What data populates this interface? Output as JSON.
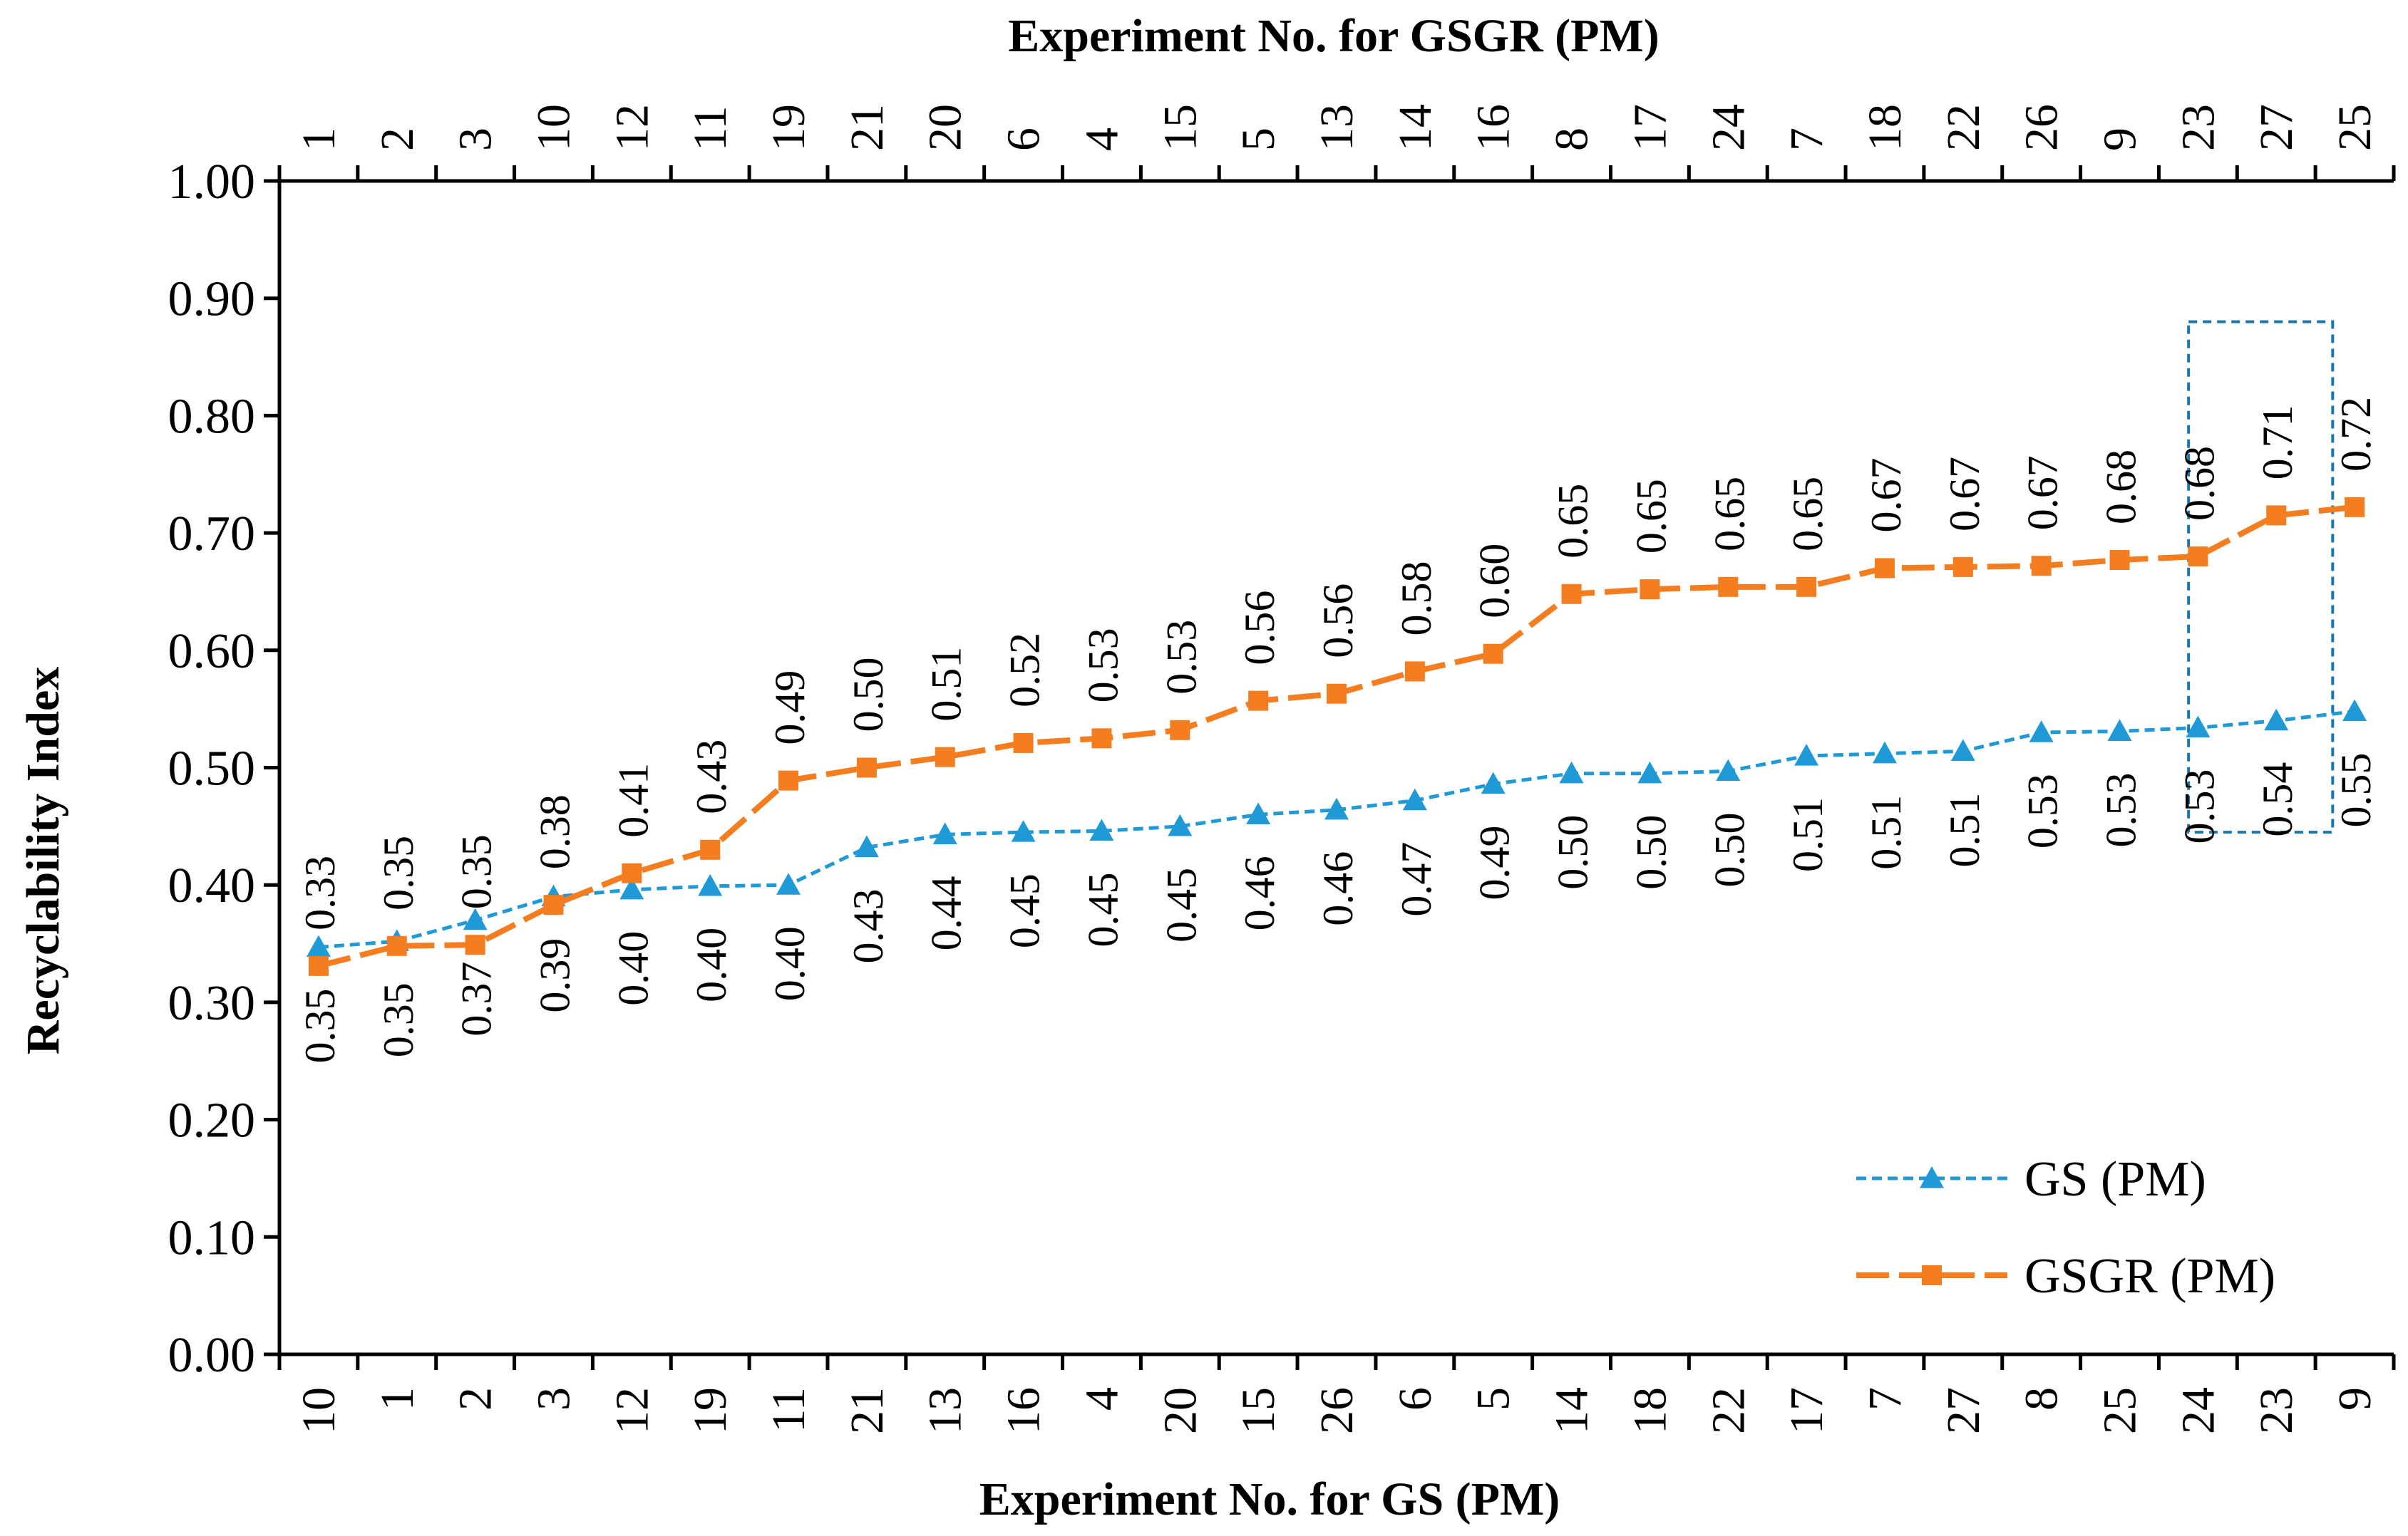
{
  "chart_data": {
    "type": "line",
    "title_top": "Experiment No. for GSGR  (PM)",
    "xlabel": "Experiment No. for GS (PM)",
    "ylabel": "Recyclability Index",
    "ylim": [
      0,
      1
    ],
    "y_ticks": [
      "0.00",
      "0.10",
      "0.20",
      "0.30",
      "0.40",
      "0.50",
      "0.60",
      "0.70",
      "0.80",
      "0.90",
      "1.00"
    ],
    "x_ticks_bottom": [
      "10",
      "1",
      "2",
      "3",
      "12",
      "19",
      "11",
      "21",
      "13",
      "16",
      "4",
      "20",
      "15",
      "26",
      "6",
      "5",
      "14",
      "18",
      "22",
      "17",
      "7",
      "27",
      "8",
      "25",
      "24",
      "23",
      "9"
    ],
    "x_ticks_top": [
      "1",
      "2",
      "3",
      "10",
      "12",
      "11",
      "19",
      "21",
      "20",
      "6",
      "4",
      "15",
      "5",
      "13",
      "14",
      "16",
      "8",
      "17",
      "24",
      "7",
      "18",
      "22",
      "26",
      "9",
      "23",
      "27",
      "25"
    ],
    "legend_position": "bottom-right",
    "series": [
      {
        "name": "GS (PM)",
        "color": "#1f9ad6",
        "marker": "triangle",
        "values": [
          0.347,
          0.352,
          0.37,
          0.39,
          0.396,
          0.399,
          0.4,
          0.432,
          0.443,
          0.445,
          0.446,
          0.45,
          0.46,
          0.464,
          0.472,
          0.486,
          0.495,
          0.495,
          0.497,
          0.51,
          0.512,
          0.514,
          0.53,
          0.531,
          0.534,
          0.54,
          0.548
        ],
        "labels": [
          "0.35",
          "0.35",
          "0.37",
          "0.39",
          "0.40",
          "0.40",
          "0.40",
          "0.43",
          "0.44",
          "0.45",
          "0.45",
          "0.45",
          "0.46",
          "0.46",
          "0.47",
          "0.49",
          "0.50",
          "0.50",
          "0.50",
          "0.51",
          "0.51",
          "0.51",
          "0.53",
          "0.53",
          "0.53",
          "0.54",
          "0.55"
        ]
      },
      {
        "name": "GSGR (PM)",
        "color": "#f47d20",
        "marker": "square",
        "values": [
          0.331,
          0.348,
          0.349,
          0.383,
          0.41,
          0.43,
          0.489,
          0.5,
          0.509,
          0.521,
          0.525,
          0.532,
          0.557,
          0.563,
          0.582,
          0.597,
          0.648,
          0.652,
          0.654,
          0.654,
          0.67,
          0.671,
          0.672,
          0.677,
          0.68,
          0.715,
          0.722
        ],
        "labels": [
          "0.33",
          "0.35",
          "0.35",
          "0.38",
          "0.41",
          "0.43",
          "0.49",
          "0.50",
          "0.51",
          "0.52",
          "0.53",
          "0.53",
          "0.56",
          "0.56",
          "0.58",
          "0.60",
          "0.65",
          "0.65",
          "0.65",
          "0.65",
          "0.67",
          "0.67",
          "0.67",
          "0.68",
          "0.68",
          "0.71",
          "0.72"
        ]
      }
    ],
    "highlight_box": {
      "from_index": 24,
      "to_index": 25,
      "y_range": [
        0.445,
        0.88
      ]
    }
  }
}
